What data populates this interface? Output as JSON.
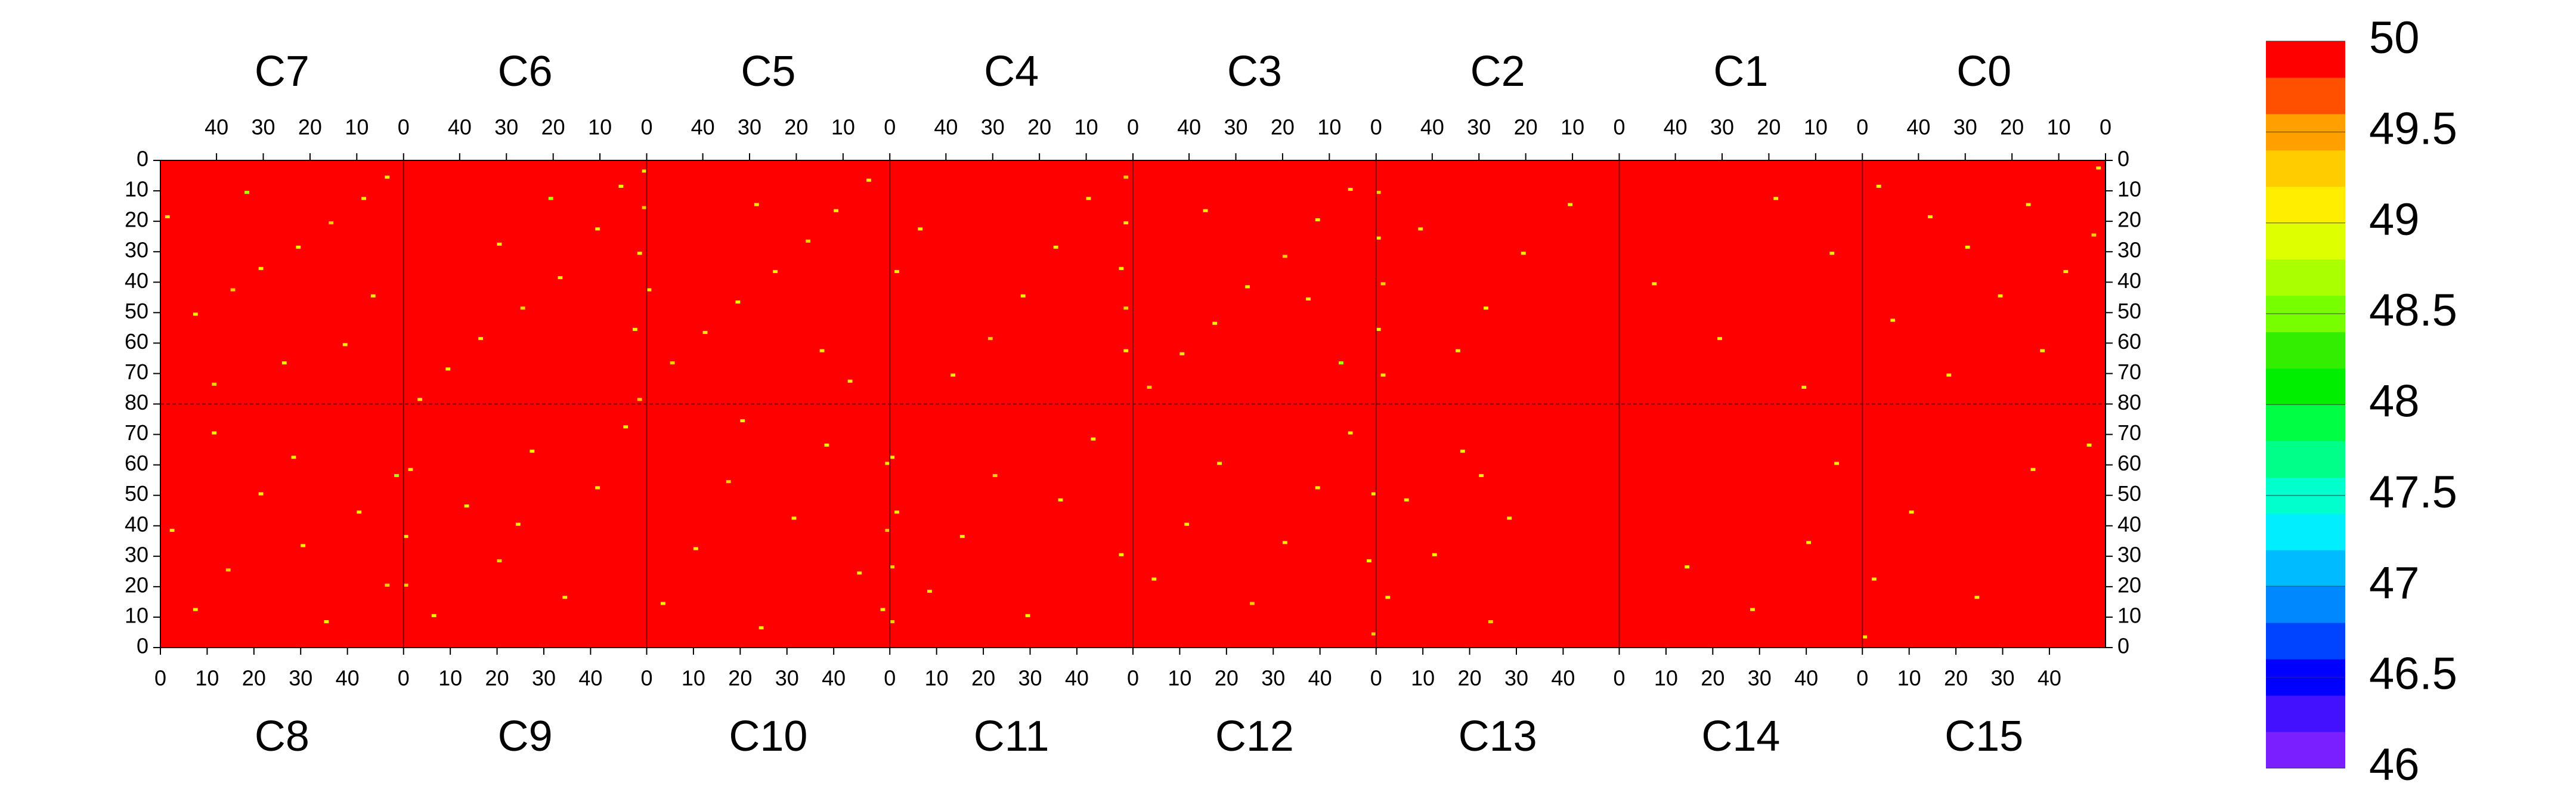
{
  "chart_data": {
    "type": "heatmap",
    "xlim": [
      0,
      52
    ],
    "ylim": [
      0,
      80
    ],
    "background_value": 50,
    "top": {
      "xticks": [
        0,
        10,
        20,
        30,
        40
      ],
      "yticks": [
        0,
        10,
        20,
        30,
        40,
        50,
        60,
        70,
        80
      ],
      "panels": [
        {
          "name": "C7",
          "cells": [
            [
              3,
              5,
              49.1
            ],
            [
              8,
              12,
              49.1
            ],
            [
              15,
              20,
              49.3
            ],
            [
              22,
              28,
              49.1
            ],
            [
              30,
              35,
              49.1
            ],
            [
              36,
              42,
              49.3
            ],
            [
              44,
              50,
              49.1
            ],
            [
              12,
              60,
              49.1
            ],
            [
              25,
              66,
              49.1
            ],
            [
              40,
              73,
              49.3
            ],
            [
              50,
              18,
              49.1
            ],
            [
              6,
              44,
              49.1
            ],
            [
              33,
              10,
              48.7
            ]
          ]
        },
        {
          "name": "C6",
          "cells": [
            [
              0,
              3,
              49.1
            ],
            [
              0,
              15,
              49.3
            ],
            [
              1,
              30,
              49.1
            ],
            [
              5,
              8,
              49.1
            ],
            [
              10,
              22,
              49.1
            ],
            [
              18,
              38,
              49.1
            ],
            [
              26,
              48,
              49.3
            ],
            [
              35,
              58,
              49.1
            ],
            [
              42,
              68,
              49.1
            ],
            [
              48,
              78,
              49.1
            ],
            [
              2,
              55,
              49.1
            ],
            [
              20,
              12,
              48.7
            ],
            [
              31,
              27,
              49.1
            ],
            [
              1,
              78,
              49.3
            ]
          ]
        },
        {
          "name": "C5",
          "cells": [
            [
              4,
              6,
              49.1
            ],
            [
              11,
              16,
              49.1
            ],
            [
              17,
              26,
              49.3
            ],
            [
              24,
              36,
              49.1
            ],
            [
              32,
              46,
              49.1
            ],
            [
              39,
              56,
              49.1
            ],
            [
              46,
              66,
              49.3
            ],
            [
              51,
              42,
              49.1
            ],
            [
              8,
              72,
              49.1
            ],
            [
              28,
              14,
              49.1
            ],
            [
              14,
              62,
              49.1
            ]
          ]
        },
        {
          "name": "C4",
          "cells": [
            [
              1,
              5,
              49.3
            ],
            [
              1,
              20,
              49.1
            ],
            [
              2,
              35,
              49.1
            ],
            [
              1,
              48,
              49.3
            ],
            [
              1,
              62,
              49.1
            ],
            [
              9,
              12,
              49.1
            ],
            [
              16,
              28,
              49.1
            ],
            [
              23,
              44,
              49.1
            ],
            [
              30,
              58,
              49.3
            ],
            [
              38,
              70,
              49.1
            ],
            [
              45,
              22,
              49.1
            ],
            [
              50,
              36,
              49.1
            ]
          ]
        },
        {
          "name": "C3",
          "cells": [
            [
              5,
              9,
              49.1
            ],
            [
              12,
              19,
              49.1
            ],
            [
              19,
              31,
              49.3
            ],
            [
              27,
              41,
              49.1
            ],
            [
              34,
              53,
              49.1
            ],
            [
              41,
              63,
              49.1
            ],
            [
              48,
              74,
              49.3
            ],
            [
              14,
              45,
              49.1
            ],
            [
              36,
              16,
              49.1
            ],
            [
              7,
              66,
              48.7
            ]
          ]
        },
        {
          "name": "C2",
          "cells": [
            [
              51,
              10,
              49.3
            ],
            [
              51,
              25,
              49.1
            ],
            [
              50,
              40,
              49.3
            ],
            [
              51,
              55,
              49.1
            ],
            [
              50,
              70,
              49.1
            ],
            [
              10,
              14,
              49.1
            ],
            [
              20,
              30,
              49.1
            ],
            [
              28,
              48,
              49.1
            ],
            [
              34,
              62,
              49.1
            ],
            [
              42,
              22,
              49.1
            ]
          ]
        },
        {
          "name": "C1",
          "cells": [
            [
              6,
              30,
              49.1
            ],
            [
              18,
              12,
              49.1
            ],
            [
              30,
              58,
              49.1
            ],
            [
              44,
              40,
              49.1
            ],
            [
              12,
              74,
              49.1
            ]
          ]
        },
        {
          "name": "C0",
          "cells": [
            [
              1,
              2,
              49.1
            ],
            [
              2,
              24,
              49.3
            ],
            [
              8,
              36,
              49.1
            ],
            [
              16,
              14,
              49.1
            ],
            [
              22,
              44,
              49.1
            ],
            [
              29,
              28,
              49.1
            ],
            [
              37,
              18,
              49.1
            ],
            [
              45,
              52,
              49.1
            ],
            [
              13,
              62,
              49.1
            ],
            [
              33,
              70,
              49.1
            ],
            [
              48,
              8,
              49.1
            ]
          ]
        }
      ]
    },
    "bottom": {
      "xticks": [
        0,
        10,
        20,
        30,
        40
      ],
      "yticks": [
        0,
        10,
        20,
        30,
        40,
        50,
        60,
        70
      ],
      "panels": [
        {
          "name": "C8",
          "cells": [
            [
              2,
              38,
              49.1
            ],
            [
              7,
              12,
              49.1
            ],
            [
              14,
              25,
              49.3
            ],
            [
              21,
              50,
              49.1
            ],
            [
              28,
              62,
              49.1
            ],
            [
              35,
              8,
              49.1
            ],
            [
              42,
              44,
              49.1
            ],
            [
              48,
              20,
              49.3
            ],
            [
              11,
              70,
              49.1
            ],
            [
              30,
              33,
              49.1
            ],
            [
              50,
              56,
              48.7
            ]
          ]
        },
        {
          "name": "C9",
          "cells": [
            [
              0,
              20,
              49.3
            ],
            [
              0,
              36,
              49.1
            ],
            [
              1,
              58,
              49.1
            ],
            [
              6,
              10,
              49.1
            ],
            [
              13,
              46,
              49.1
            ],
            [
              20,
              28,
              49.3
            ],
            [
              27,
              64,
              49.1
            ],
            [
              34,
              16,
              49.1
            ],
            [
              41,
              52,
              49.1
            ],
            [
              47,
              72,
              49.1
            ],
            [
              24,
              40,
              49.1
            ]
          ]
        },
        {
          "name": "C10",
          "cells": [
            [
              3,
              14,
              49.1
            ],
            [
              10,
              32,
              49.1
            ],
            [
              17,
              54,
              49.3
            ],
            [
              24,
              6,
              49.1
            ],
            [
              31,
              42,
              49.1
            ],
            [
              38,
              66,
              49.1
            ],
            [
              45,
              24,
              49.1
            ],
            [
              51,
              38,
              49.3
            ],
            [
              50,
              12,
              49.1
            ],
            [
              51,
              60,
              49.1
            ],
            [
              20,
              74,
              49.1
            ]
          ]
        },
        {
          "name": "C11",
          "cells": [
            [
              0,
              8,
              49.3
            ],
            [
              0,
              26,
              49.3
            ],
            [
              1,
              44,
              49.1
            ],
            [
              0,
              62,
              49.1
            ],
            [
              8,
              18,
              49.1
            ],
            [
              15,
              36,
              49.1
            ],
            [
              22,
              56,
              49.3
            ],
            [
              29,
              10,
              49.1
            ],
            [
              36,
              48,
              49.1
            ],
            [
              43,
              68,
              49.1
            ],
            [
              49,
              30,
              49.1
            ]
          ]
        },
        {
          "name": "C12",
          "cells": [
            [
              4,
              22,
              49.1
            ],
            [
              11,
              40,
              49.1
            ],
            [
              18,
              60,
              49.1
            ],
            [
              25,
              14,
              49.3
            ],
            [
              32,
              34,
              49.1
            ],
            [
              39,
              52,
              49.1
            ],
            [
              46,
              70,
              49.1
            ],
            [
              51,
              4,
              49.3
            ],
            [
              51,
              50,
              49.1
            ],
            [
              50,
              28,
              49.1
            ]
          ]
        },
        {
          "name": "C13",
          "cells": [
            [
              2,
              16,
              49.1
            ],
            [
              6,
              48,
              49.1
            ],
            [
              12,
              30,
              49.1
            ],
            [
              18,
              64,
              49.1
            ],
            [
              24,
              8,
              49.3
            ],
            [
              28,
              42,
              49.1
            ],
            [
              22,
              56,
              49.1
            ]
          ]
        },
        {
          "name": "C14",
          "cells": [
            [
              14,
              26,
              49.1
            ],
            [
              28,
              12,
              49.1
            ],
            [
              40,
              34,
              49.1
            ],
            [
              46,
              60,
              49.1
            ]
          ]
        },
        {
          "name": "C15",
          "cells": [
            [
              0,
              3,
              49.1
            ],
            [
              2,
              22,
              49.1
            ],
            [
              10,
              44,
              49.1
            ],
            [
              24,
              16,
              49.1
            ],
            [
              36,
              58,
              49.1
            ],
            [
              48,
              66,
              49.1
            ]
          ]
        }
      ]
    },
    "colorbar": {
      "lim": [
        46,
        50
      ],
      "ticks": [
        46,
        46.5,
        47,
        47.5,
        48,
        48.5,
        49,
        49.5,
        50
      ],
      "colors": [
        "#7a1fff",
        "#4411ff",
        "#0000ff",
        "#0044ff",
        "#0088ff",
        "#00bbff",
        "#00eeff",
        "#00ffcc",
        "#00ff88",
        "#00ff44",
        "#00ee00",
        "#33ee00",
        "#77ff00",
        "#aaff00",
        "#ddff00",
        "#ffee00",
        "#ffcc00",
        "#ffa000",
        "#ff5000",
        "#ff0000"
      ]
    }
  }
}
